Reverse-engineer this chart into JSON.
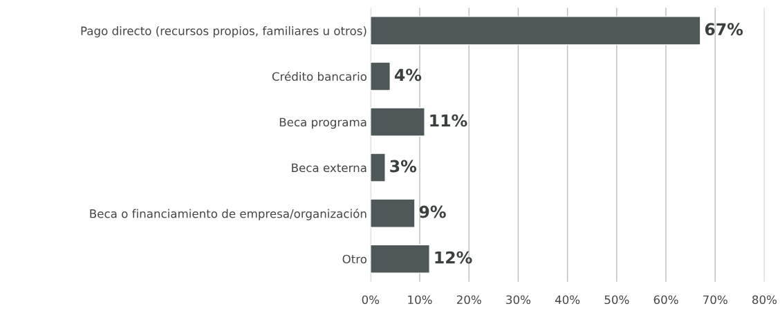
{
  "chart_data": {
    "type": "bar",
    "orientation": "horizontal",
    "categories": [
      "Pago directo (recursos propios, familiares u otros)",
      "Crédito bancario",
      "Beca programa",
      "Beca externa",
      "Beca o financiamiento de empresa/organización",
      "Otro"
    ],
    "values": [
      67,
      4,
      11,
      3,
      9,
      12
    ],
    "value_labels": [
      "67%",
      "4%",
      "11%",
      "3%",
      "9%",
      "12%"
    ],
    "color": "#4f5858",
    "xlim": [
      0,
      80
    ],
    "xticks": [
      {
        "value": 0,
        "label": "0%"
      },
      {
        "value": 10,
        "label": "10%"
      },
      {
        "value": 20,
        "label": "20%"
      },
      {
        "value": 30,
        "label": "30%"
      },
      {
        "value": 40,
        "label": "40%"
      },
      {
        "value": 50,
        "label": "50%"
      },
      {
        "value": 60,
        "label": "60%"
      },
      {
        "value": 70,
        "label": "70%"
      },
      {
        "value": 80,
        "label": "80%"
      }
    ],
    "grid": "x",
    "legend": false
  }
}
